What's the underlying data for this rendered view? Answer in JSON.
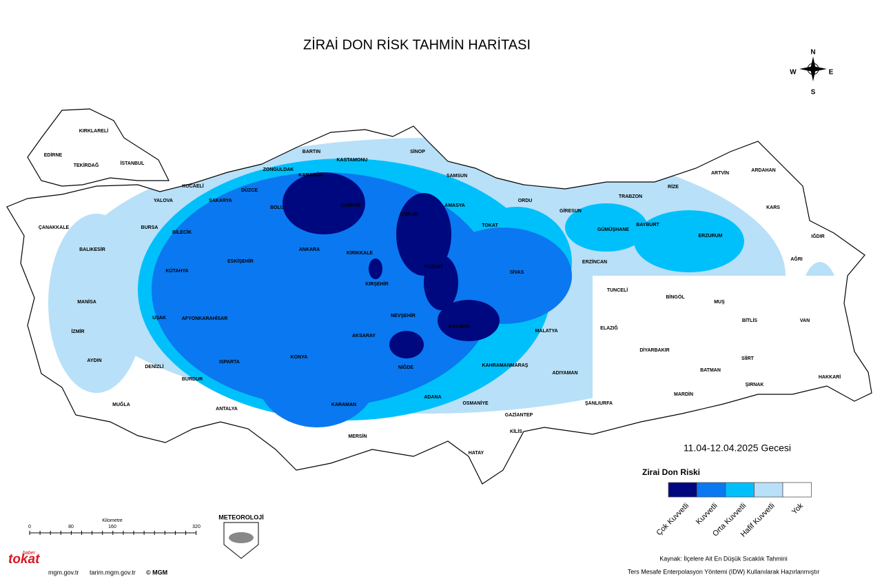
{
  "title": "ZİRAİ DON RİSK TAHMİN HARİTASI",
  "date": "11.04-12.04.2025 Gecesi",
  "compass": {
    "n": "N",
    "s": "S",
    "e": "E",
    "w": "W"
  },
  "legend": {
    "title": "Zirai Don Riski",
    "items": [
      {
        "label": "Çok Kuvvetli",
        "color": "#00087f"
      },
      {
        "label": "Kuvvetli",
        "color": "#0a78f0"
      },
      {
        "label": "Orta Kuvvetli",
        "color": "#00c0fb"
      },
      {
        "label": "Hafif Kuvvetli",
        "color": "#b8e0f8"
      },
      {
        "label": "Yok",
        "color": "#ffffff"
      }
    ]
  },
  "scale": {
    "title": "Kilometre",
    "ticks": [
      "0",
      "80",
      "160",
      "320"
    ]
  },
  "logo": "METEOROLOJİ",
  "badge": {
    "top": "haber",
    "main": "tokat"
  },
  "footer": {
    "links": [
      "mgm.gov.tr",
      "tarim.mgm.gov.tr",
      "© MGM"
    ],
    "source": "Kaynak: İlçelere Ait En Düşük Sıcaklık Tahmini",
    "method": "Ters Mesafe Enterpolasyon Yöntemi (IDW) Kullanılarak Hazırlanmıştır"
  },
  "provinces": [
    "KIRKLARELİ",
    "EDİRNE",
    "TEKİRDAĞ",
    "İSTANBUL",
    "KOCAELİ",
    "SAKARYA",
    "YALOVA",
    "BURSA",
    "ÇANAKKALE",
    "BALIKESİR",
    "BİLECİK",
    "DÜZCE",
    "ZONGULDAK",
    "BARTIN",
    "KARABÜK",
    "KASTAMONU",
    "SİNOP",
    "SAMSUN",
    "BOLU",
    "ÇANKIRI",
    "ÇORUM",
    "AMASYA",
    "TOKAT",
    "ORDU",
    "GİRESUN",
    "TRABZON",
    "RİZE",
    "ARTVİN",
    "ARDAHAN",
    "KARS",
    "GÜMÜŞHANE",
    "BAYBURT",
    "ERZURUM",
    "IĞDIR",
    "AĞRI",
    "ERZİNCAN",
    "ESKİŞEHİR",
    "KÜTAHYA",
    "ANKARA",
    "KIRIKKALE",
    "YOZGAT",
    "SİVAS",
    "KIRŞEHİR",
    "TUNCELİ",
    "BİNGÖL",
    "MUŞ",
    "MANİSA",
    "UŞAK",
    "AFYONKARAHİSAR",
    "NEVŞEHİR",
    "KAYSERİ",
    "MALATYA",
    "ELAZIĞ",
    "BİTLİS",
    "VAN",
    "İZMİR",
    "AKSARAY",
    "DİYARBAKIR",
    "AYDIN",
    "DENİZLİ",
    "ISPARTA",
    "KONYA",
    "NİĞDE",
    "KAHRAMANMARAŞ",
    "ADIYAMAN",
    "SİİRT",
    "BATMAN",
    "HAKKARİ",
    "ŞIRNAK",
    "BURDUR",
    "MUĞLA",
    "ANTALYA",
    "KARAMAN",
    "ADANA",
    "OSMANİYE",
    "MARDİN",
    "ŞANLIURFA",
    "GAZİANTEP",
    "KİLİS",
    "MERSİN",
    "HATAY"
  ]
}
